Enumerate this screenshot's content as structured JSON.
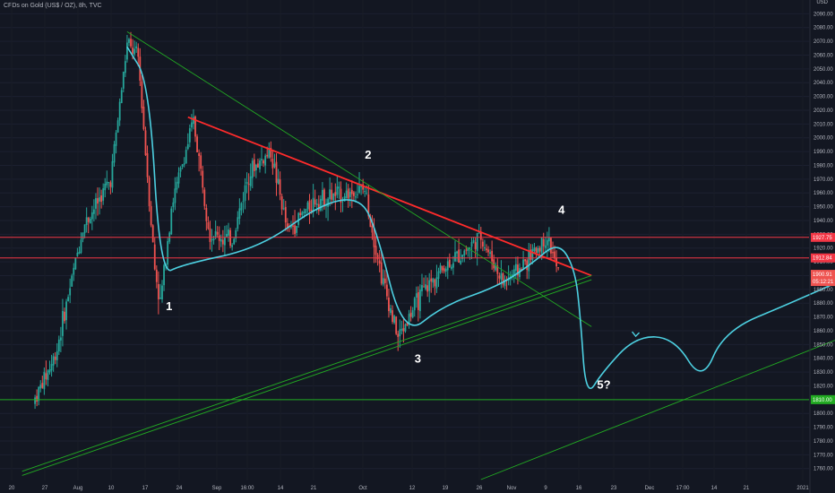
{
  "header": {
    "title": "CFDs on Gold (US$ / OZ), 8h, TVC",
    "currency": "USD"
  },
  "colors": {
    "background": "#131722",
    "bull": "#26a69a",
    "bear": "#ef5350",
    "hline_red": "#f23645",
    "support_green": "#22ab22",
    "wave_path": "#4dd0e1",
    "trendline_red": "#ff2b2b",
    "last_price_tag": "#ef5350"
  },
  "chart_data": {
    "type": "candlestick",
    "y_axis": {
      "min": 1752,
      "max": 2100,
      "ticks": [
        "1760.00",
        "1770.00",
        "1780.00",
        "1790.00",
        "1800.00",
        "1810.00",
        "1820.00",
        "1830.00",
        "1840.00",
        "1850.00",
        "1860.00",
        "1870.00",
        "1880.00",
        "1890.00",
        "1900.00",
        "1910.00",
        "1920.00",
        "1930.00",
        "1940.00",
        "1950.00",
        "1960.00",
        "1970.00",
        "1980.00",
        "1990.00",
        "2000.00",
        "2010.00",
        "2020.00",
        "2030.00",
        "2040.00",
        "2050.00",
        "2060.00",
        "2070.00",
        "2080.00",
        "2090.00"
      ]
    },
    "x_axis": {
      "ticks": [
        "20",
        "27",
        "Aug",
        "10",
        "17",
        "24",
        "Sep",
        "16:00",
        "14",
        "21",
        "Oct",
        "12",
        "19",
        "26",
        "Nov",
        "9",
        "16",
        "23",
        "Dec",
        "17:00",
        "14",
        "21",
        "2021"
      ]
    },
    "ohlc_path": [
      {
        "date": "Jul 20",
        "price": 1808
      },
      {
        "date": "Jul 24",
        "price": 1842
      },
      {
        "date": "Jul 29",
        "price": 1935
      },
      {
        "date": "Aug 3",
        "price": 1970
      },
      {
        "date": "Aug 6",
        "price": 2068
      },
      {
        "date": "Aug 8",
        "price": 2058
      },
      {
        "date": "Aug 11",
        "price": 1905
      },
      {
        "date": "Aug 12",
        "price": 1880
      },
      {
        "date": "Aug 14",
        "price": 1950
      },
      {
        "date": "Aug 18",
        "price": 2012
      },
      {
        "date": "Aug 21",
        "price": 1930
      },
      {
        "date": "Aug 25",
        "price": 1925
      },
      {
        "date": "Aug 28",
        "price": 1975
      },
      {
        "date": "Sep 1",
        "price": 1990
      },
      {
        "date": "Sep 4",
        "price": 1932
      },
      {
        "date": "Sep 9",
        "price": 1955
      },
      {
        "date": "Sep 15",
        "price": 1960
      },
      {
        "date": "Sep 18",
        "price": 1962
      },
      {
        "date": "Sep 21",
        "price": 1900
      },
      {
        "date": "Sep 24",
        "price": 1855
      },
      {
        "date": "Sep 28",
        "price": 1885
      },
      {
        "date": "Oct 2",
        "price": 1905
      },
      {
        "date": "Oct 9",
        "price": 1928
      },
      {
        "date": "Oct 13",
        "price": 1895
      },
      {
        "date": "Oct 16",
        "price": 1905
      },
      {
        "date": "Oct 21",
        "price": 1928
      },
      {
        "date": "Oct 23",
        "price": 1902
      }
    ],
    "horizontal_lines": [
      {
        "price": 1927.75,
        "label": "1927.75",
        "color": "#f23645"
      },
      {
        "price": 1912.84,
        "label": "1912.84",
        "color": "#f23645"
      },
      {
        "price": 1810.0,
        "label": "1810.00",
        "color": "#22ab22"
      }
    ],
    "last_price": {
      "price": "1900.91",
      "countdown": "05:12:21"
    },
    "trendlines": [
      {
        "from": {
          "date": "Aug 17",
          "price": 2015
        },
        "to": {
          "date": "Oct 29",
          "price": 1900
        },
        "color": "#ff2b2b"
      },
      {
        "from": {
          "date": "Aug 6",
          "price": 2077
        },
        "to": {
          "date": "Oct 29",
          "price": 1863
        },
        "color": "#22ab22"
      },
      {
        "from": {
          "date": "Jul 18",
          "price": 1758
        },
        "to": {
          "date": "Oct 29",
          "price": 1900
        },
        "color": "#22ab22"
      },
      {
        "from": {
          "date": "Jul 18",
          "price": 1755
        },
        "to": {
          "date": "Oct 29",
          "price": 1897
        },
        "color": "#22ab22"
      },
      {
        "from": {
          "date": "Oct 9",
          "price": 1752
        },
        "to": {
          "date": "Dec 31",
          "price": 1883
        },
        "color": "#22ab22"
      }
    ],
    "projection_path": [
      {
        "date": "Aug 6",
        "price": 2066
      },
      {
        "date": "Aug 10",
        "price": 2040
      },
      {
        "date": "Aug 12",
        "price": 1900
      },
      {
        "date": "Aug 16",
        "price": 1908
      },
      {
        "date": "Aug 30",
        "price": 1920
      },
      {
        "date": "Sep 10",
        "price": 1952
      },
      {
        "date": "Sep 17",
        "price": 1957
      },
      {
        "date": "Sep 20",
        "price": 1935
      },
      {
        "date": "Sep 25",
        "price": 1855
      },
      {
        "date": "Oct 2",
        "price": 1878
      },
      {
        "date": "Oct 12",
        "price": 1892
      },
      {
        "date": "Oct 18",
        "price": 1908
      },
      {
        "date": "Oct 23",
        "price": 1925
      },
      {
        "date": "Oct 26",
        "price": 1905
      },
      {
        "date": "Oct 27",
        "price": 1870
      },
      {
        "date": "Oct 28",
        "price": 1811
      },
      {
        "date": "Oct 31",
        "price": 1830
      },
      {
        "date": "Nov 6",
        "price": 1856
      },
      {
        "date": "Nov 13",
        "price": 1855
      },
      {
        "date": "Nov 18",
        "price": 1822
      },
      {
        "date": "Nov 22",
        "price": 1860
      },
      {
        "date": "Dec 4",
        "price": 1880
      },
      {
        "date": "Dec 18",
        "price": 1905
      },
      {
        "date": "Dec 21",
        "price": 1914
      }
    ],
    "wave_labels": [
      {
        "text": "1",
        "date": "Aug 13",
        "price": 1875
      },
      {
        "text": "2",
        "date": "Sep 18",
        "price": 1985
      },
      {
        "text": "3",
        "date": "Sep 27",
        "price": 1837
      },
      {
        "text": "4",
        "date": "Oct 23",
        "price": 1945
      },
      {
        "text": "5?",
        "date": "Oct 30",
        "price": 1818
      }
    ]
  }
}
